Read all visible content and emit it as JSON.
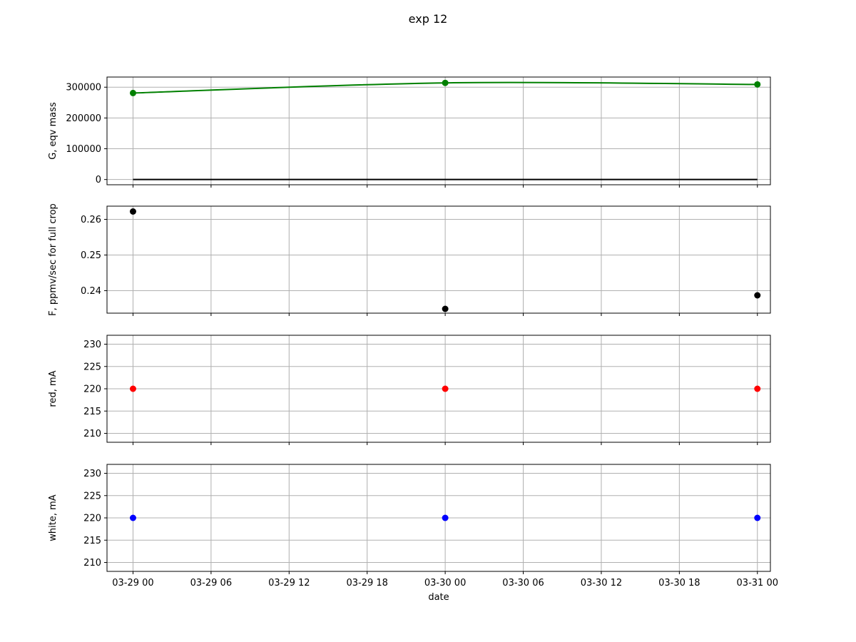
{
  "figure": {
    "title": "exp 12",
    "xlabel": "date"
  },
  "chart_data": [
    {
      "type": "line",
      "ylabel": "G, eqv mass",
      "x": [
        "03-29 00",
        "03-30 00",
        "03-31 00"
      ],
      "xlim": [
        "03-28 22:00",
        "03-31 01:00"
      ],
      "xticks": [
        "03-29 00",
        "03-29 06",
        "03-29 12",
        "03-29 18",
        "03-30 00",
        "03-30 06",
        "03-30 12",
        "03-30 18",
        "03-31 00"
      ],
      "ylim": [
        -17000,
        333000
      ],
      "yticks": [
        0,
        100000,
        200000,
        300000
      ],
      "grid": true,
      "series": [
        {
          "color": "#008000",
          "marker": true,
          "smooth": true,
          "values": [
            281000,
            314000,
            309000
          ]
        },
        {
          "color": "#000000",
          "marker": false,
          "values": [
            0,
            0,
            0
          ]
        }
      ]
    },
    {
      "type": "scatter",
      "ylabel": "F, ppmv/sec for full crop",
      "x": [
        "03-29 00",
        "03-30 00",
        "03-31 00"
      ],
      "xlim": [
        "03-28 22:00",
        "03-31 01:00"
      ],
      "xticks": [
        "03-29 00",
        "03-29 06",
        "03-29 12",
        "03-29 18",
        "03-30 00",
        "03-30 06",
        "03-30 12",
        "03-30 18",
        "03-31 00"
      ],
      "ylim": [
        0.2337,
        0.2637
      ],
      "yticks": [
        0.24,
        0.25,
        0.26
      ],
      "grid": true,
      "series": [
        {
          "color": "#000000",
          "values": [
            0.2622,
            0.2349,
            0.2387
          ]
        }
      ]
    },
    {
      "type": "scatter",
      "ylabel": "red, mA",
      "x": [
        "03-29 00",
        "03-30 00",
        "03-31 00"
      ],
      "xlim": [
        "03-28 22:00",
        "03-31 01:00"
      ],
      "xticks": [
        "03-29 00",
        "03-29 06",
        "03-29 12",
        "03-29 18",
        "03-30 00",
        "03-30 06",
        "03-30 12",
        "03-30 18",
        "03-31 00"
      ],
      "ylim": [
        208,
        232
      ],
      "yticks": [
        210,
        215,
        220,
        225,
        230
      ],
      "grid": true,
      "series": [
        {
          "color": "#ff0000",
          "values": [
            220,
            220,
            220
          ]
        }
      ]
    },
    {
      "type": "scatter",
      "ylabel": "white, mA",
      "x": [
        "03-29 00",
        "03-30 00",
        "03-31 00"
      ],
      "xlim": [
        "03-28 22:00",
        "03-31 01:00"
      ],
      "xticks": [
        "03-29 00",
        "03-29 06",
        "03-29 12",
        "03-29 18",
        "03-30 00",
        "03-30 06",
        "03-30 12",
        "03-30 18",
        "03-31 00"
      ],
      "ylim": [
        208,
        232
      ],
      "yticks": [
        210,
        215,
        220,
        225,
        230
      ],
      "grid": true,
      "series": [
        {
          "color": "#0000ff",
          "values": [
            220,
            220,
            220
          ]
        }
      ]
    }
  ]
}
